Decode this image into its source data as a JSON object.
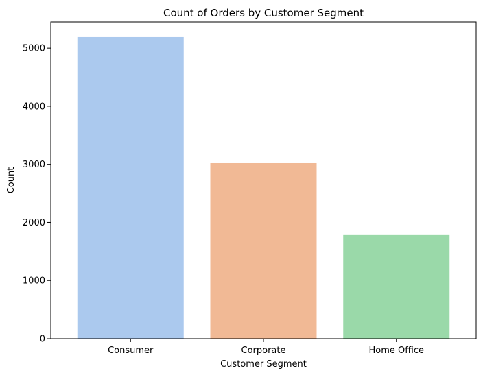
{
  "chart_data": {
    "type": "bar",
    "title": "Count of Orders by Customer Segment",
    "xlabel": "Customer Segment",
    "ylabel": "Count",
    "categories": [
      "Consumer",
      "Corporate",
      "Home Office"
    ],
    "values": [
      5191,
      3020,
      1783
    ],
    "colors": [
      "#abc9ee",
      "#f1b995",
      "#9ad9a9"
    ],
    "ylim": [
      0,
      5450
    ],
    "yticks": [
      0,
      1000,
      2000,
      3000,
      4000,
      5000
    ],
    "grid": false
  }
}
